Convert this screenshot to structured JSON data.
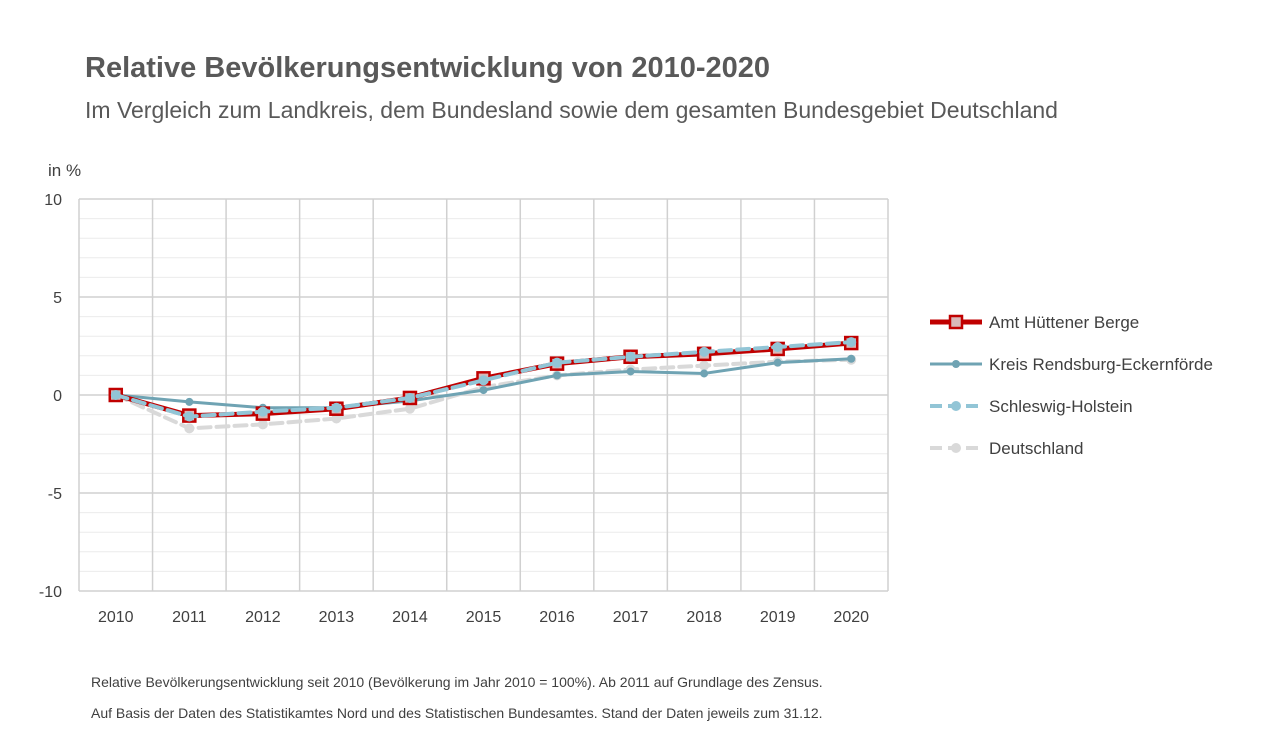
{
  "header": {
    "title": "Relative Bevölkerungsentwicklung von 2010-2020",
    "subtitle": "Im Vergleich zum Landkreis, dem Bundesland sowie dem gesamten Bundesgebiet Deutschland"
  },
  "footnotes": {
    "line1": "Relative Bevölkerungsentwicklung seit 2010 (Bevölkerung im Jahr 2010 = 100%). Ab 2011 auf Grundlage des Zensus.",
    "line2": "Auf Basis der Daten des Statistikamtes Nord und des Statistischen Bundesamtes. Stand der Daten jeweils zum 31.12."
  },
  "chart_data": {
    "type": "line",
    "title": "Relative Bevölkerungsentwicklung von 2010-2020",
    "subtitle": "Im Vergleich zum Landkreis, dem Bundesland sowie dem gesamten Bundesgebiet Deutschland",
    "ylabel": "in %",
    "xlabel": "",
    "ylim": [
      -10,
      10
    ],
    "yticks": [
      10,
      5,
      0,
      -5,
      -10
    ],
    "grid": true,
    "legend_position": "right",
    "categories": [
      "2010",
      "2011",
      "2012",
      "2013",
      "2014",
      "2015",
      "2016",
      "2017",
      "2018",
      "2019",
      "2020"
    ],
    "series": [
      {
        "name": "Deutschland",
        "color": "#d9d9d9",
        "style": "dashed",
        "values": [
          0,
          -1.7,
          -1.5,
          -1.2,
          -0.7,
          0.4,
          1.0,
          1.3,
          1.5,
          1.7,
          1.8
        ]
      },
      {
        "name": "Kreis Rendsburg-Eckernförde",
        "color": "#6fa3b3",
        "style": "solid",
        "values": [
          0,
          -0.35,
          -0.65,
          -0.65,
          -0.3,
          0.25,
          1.0,
          1.2,
          1.1,
          1.65,
          1.85
        ]
      },
      {
        "name": "Amt Hüttener Berge",
        "color": "#c00000",
        "style": "solid-thick",
        "values": [
          0,
          -1.05,
          -0.95,
          -0.7,
          -0.15,
          0.85,
          1.6,
          1.95,
          2.1,
          2.35,
          2.65
        ]
      },
      {
        "name": "Schleswig-Holstein",
        "color": "#92c5d6",
        "style": "dashed",
        "values": [
          0,
          -1.1,
          -0.85,
          -0.65,
          -0.15,
          0.75,
          1.65,
          1.95,
          2.2,
          2.45,
          2.7
        ]
      }
    ],
    "legend_order": [
      "Amt Hüttener Berge",
      "Kreis Rendsburg-Eckernförde",
      "Schleswig-Holstein",
      "Deutschland"
    ]
  }
}
